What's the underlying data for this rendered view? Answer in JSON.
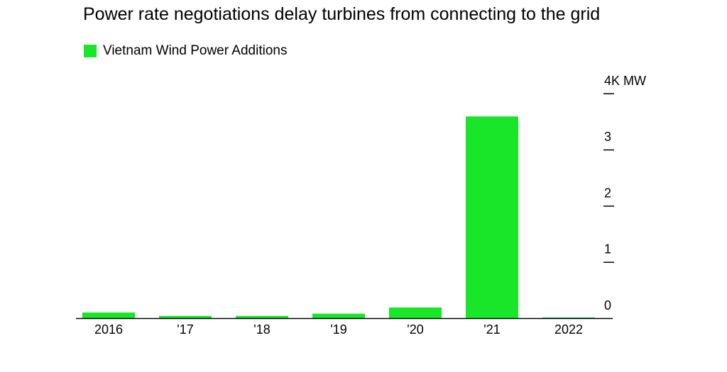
{
  "title": "Power rate negotiations delay turbines from connecting to the grid",
  "legend": {
    "label": "Vietnam Wind Power Additions"
  },
  "colors": {
    "bar": "#19e629",
    "axis": "#000000",
    "text": "#000000"
  },
  "chart_data": {
    "type": "bar",
    "title": "Power rate negotiations delay turbines from connecting to the grid",
    "xlabel": "",
    "ylabel": "",
    "categories": [
      "2016",
      "'17",
      "'18",
      "'19",
      "'20",
      "'21",
      "2022"
    ],
    "series": [
      {
        "name": "Vietnam Wind Power Additions",
        "values": [
          0.1,
          0.04,
          0.04,
          0.08,
          0.19,
          3.59,
          0.01
        ]
      }
    ],
    "ylim": [
      0,
      4
    ],
    "yticks": [
      0,
      1,
      2,
      3,
      4
    ],
    "ytick_labels": [
      "0",
      "1",
      "2",
      "3",
      "4K MW"
    ],
    "y_axis_position": "right",
    "grid": false,
    "legend_position": "top-left"
  }
}
